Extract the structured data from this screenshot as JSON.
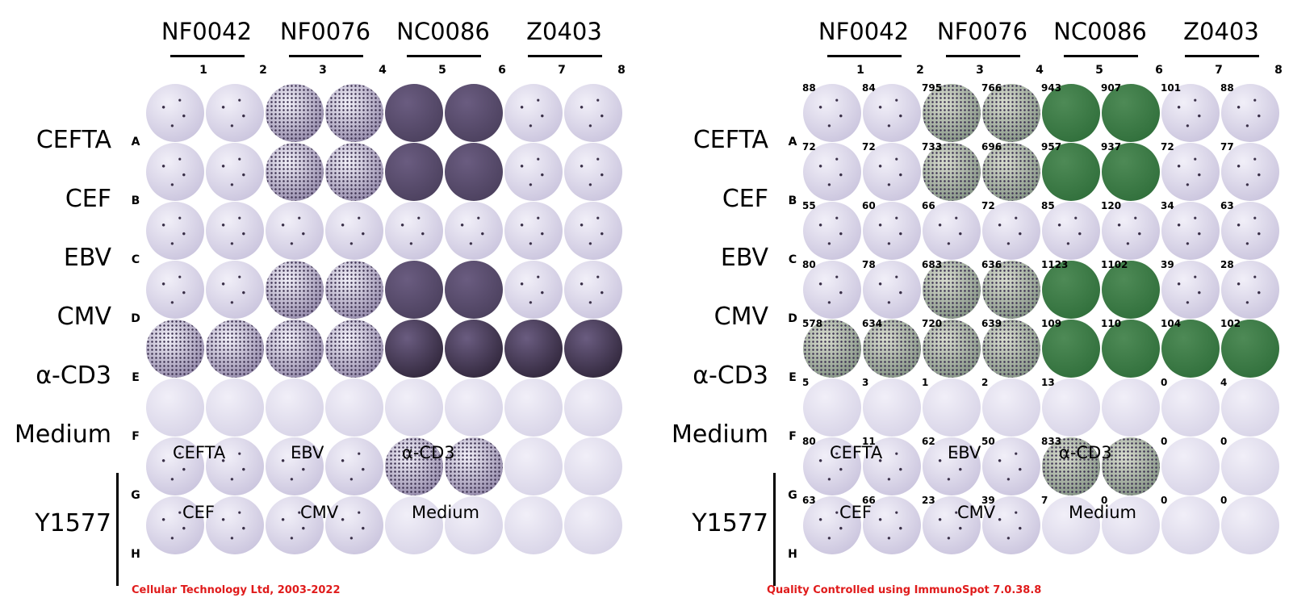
{
  "donors": [
    "NF0042",
    "NF0076",
    "NC0086",
    "Z0403"
  ],
  "columns": [
    "1",
    "2",
    "3",
    "4",
    "5",
    "6",
    "7",
    "8"
  ],
  "row_letters": [
    "A",
    "B",
    "C",
    "D",
    "E",
    "F",
    "G",
    "H"
  ],
  "row_labels": [
    "CEFTA",
    "CEF",
    "EBV",
    "CMV",
    "α-CD3",
    "Medium"
  ],
  "y_donor": "Y1577",
  "y_sub_labels": {
    "g": [
      "CEFTA",
      "EBV",
      "α-CD3"
    ],
    "h": [
      "CEF",
      "CMV",
      "Medium"
    ]
  },
  "wells": [
    [
      "light",
      "light",
      "medium",
      "medium",
      "dark",
      "dark",
      "light",
      "light"
    ],
    [
      "light",
      "light",
      "medium",
      "medium",
      "dark",
      "dark",
      "light",
      "light"
    ],
    [
      "light",
      "light",
      "light",
      "light",
      "light",
      "light",
      "light",
      "light"
    ],
    [
      "light",
      "light",
      "medium",
      "medium",
      "dark",
      "dark",
      "light",
      "light"
    ],
    [
      "medium",
      "medium",
      "medium",
      "medium",
      "xdark",
      "xdark",
      "xdark",
      "xdark"
    ],
    [
      "blank",
      "blank",
      "blank",
      "blank",
      "blank",
      "blank",
      "blank",
      "blank"
    ],
    [
      "light",
      "light",
      "light",
      "light",
      "medium",
      "medium",
      "blank",
      "blank"
    ],
    [
      "light",
      "light",
      "light",
      "light",
      "blank",
      "blank",
      "blank",
      "blank"
    ]
  ],
  "counts": [
    [
      "88",
      "84",
      "795",
      "766",
      "943",
      "907",
      "101",
      "88"
    ],
    [
      "72",
      "72",
      "733",
      "696",
      "957",
      "937",
      "72",
      "77"
    ],
    [
      "55",
      "60",
      "66",
      "72",
      "85",
      "120",
      "34",
      "63"
    ],
    [
      "80",
      "78",
      "683",
      "636",
      "1123",
      "1102",
      "39",
      "28"
    ],
    [
      "578",
      "634",
      "720",
      "639",
      "109",
      "110",
      "104",
      "102"
    ],
    [
      "5",
      "3",
      "1",
      "2",
      "13",
      "",
      "0",
      "4"
    ],
    [
      "80",
      "11",
      "62",
      "50",
      "833",
      "",
      "0",
      "0"
    ],
    [
      "63",
      "66",
      "23",
      "39",
      "7",
      "0",
      "0",
      "0"
    ]
  ],
  "footer_left": "Cellular Technology Ltd, 2003-2022",
  "footer_right": "Quality Controlled using ImmunoSpot 7.0.38.8",
  "colors": {
    "well_blank": "#d6d2e6",
    "well_light": "#c8c2dc",
    "well_medium": "#8f84a6",
    "well_dark": "#4a3f5c",
    "well_xdark": "#2e2438",
    "counted_green": "#2f6e3a",
    "footer_red": "#e01b1b"
  }
}
